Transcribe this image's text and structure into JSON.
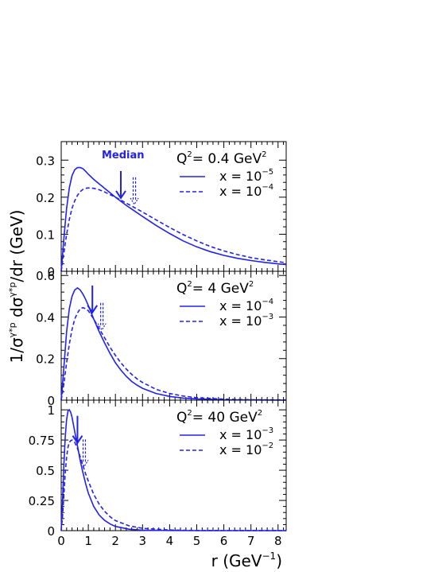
{
  "figure": {
    "ylabel_main": "1/σ",
    "ylabel_sup1": "γ*p",
    "ylabel_mid": " dσ",
    "ylabel_sup2": "γ*p",
    "ylabel_tail": "/dr (GeV)",
    "xlabel_main": "r (GeV",
    "xlabel_sup": "−1",
    "xlabel_close": ")",
    "median_label": "Median",
    "x_ticks": [
      "0",
      "1",
      "2",
      "3",
      "4",
      "5",
      "6",
      "7",
      "8"
    ]
  },
  "chart_data": [
    {
      "type": "line",
      "panel": "top",
      "q2_prefix": "Q",
      "q2_sup": "2",
      "q2_value": "= 0.4 GeV",
      "q2_unit_sup": "2",
      "xlim": [
        0,
        8.3
      ],
      "ylim": [
        0,
        0.35
      ],
      "y_ticks": [
        {
          "v": 0,
          "t": "0"
        },
        {
          "v": 0.1,
          "t": "0.1"
        },
        {
          "v": 0.2,
          "t": "0.2"
        },
        {
          "v": 0.3,
          "t": "0.3"
        }
      ],
      "series": [
        {
          "name": "x = 10",
          "exp": "−5",
          "style": "solid",
          "x": [
            0,
            0.1,
            0.2,
            0.3,
            0.4,
            0.5,
            0.6,
            0.7,
            0.8,
            0.9,
            1.0,
            1.2,
            1.4,
            1.6,
            1.8,
            2.0,
            2.2,
            2.4,
            2.6,
            2.8,
            3.0,
            3.5,
            4.0,
            4.5,
            5.0,
            5.5,
            6.0,
            6.5,
            7.0,
            7.5,
            8.0,
            8.3
          ],
          "y": [
            0,
            0.09,
            0.17,
            0.225,
            0.258,
            0.274,
            0.28,
            0.28,
            0.277,
            0.27,
            0.262,
            0.248,
            0.236,
            0.224,
            0.212,
            0.2,
            0.189,
            0.178,
            0.168,
            0.158,
            0.148,
            0.124,
            0.102,
            0.082,
            0.066,
            0.053,
            0.043,
            0.035,
            0.029,
            0.024,
            0.02,
            0.018
          ],
          "median": 2.2
        },
        {
          "name": "x = 10",
          "exp": "−4",
          "style": "dashed",
          "x": [
            0,
            0.1,
            0.2,
            0.3,
            0.4,
            0.5,
            0.6,
            0.7,
            0.8,
            0.9,
            1.0,
            1.2,
            1.4,
            1.6,
            1.8,
            2.0,
            2.2,
            2.4,
            2.6,
            2.8,
            3.0,
            3.5,
            4.0,
            4.5,
            5.0,
            5.5,
            6.0,
            6.5,
            7.0,
            7.5,
            8.0,
            8.3
          ],
          "y": [
            0,
            0.05,
            0.1,
            0.14,
            0.17,
            0.19,
            0.205,
            0.215,
            0.221,
            0.224,
            0.225,
            0.224,
            0.22,
            0.214,
            0.207,
            0.2,
            0.192,
            0.184,
            0.176,
            0.168,
            0.16,
            0.139,
            0.118,
            0.099,
            0.082,
            0.067,
            0.055,
            0.045,
            0.037,
            0.031,
            0.026,
            0.023
          ],
          "median": 2.7
        }
      ]
    },
    {
      "type": "line",
      "panel": "middle",
      "q2_prefix": "Q",
      "q2_sup": "2",
      "q2_value": "= 4 GeV",
      "q2_unit_sup": "2",
      "xlim": [
        0,
        8.3
      ],
      "ylim": [
        0,
        0.62
      ],
      "y_ticks": [
        {
          "v": 0,
          "t": "0"
        },
        {
          "v": 0.2,
          "t": "0.2"
        },
        {
          "v": 0.4,
          "t": "0.4"
        },
        {
          "v": 0.6,
          "t": "0.6"
        }
      ],
      "series": [
        {
          "name": "x = 10",
          "exp": "−4",
          "style": "solid",
          "x": [
            0,
            0.1,
            0.2,
            0.3,
            0.4,
            0.5,
            0.6,
            0.7,
            0.8,
            0.9,
            1.0,
            1.2,
            1.4,
            1.6,
            1.8,
            2.0,
            2.2,
            2.4,
            2.6,
            2.8,
            3.0,
            3.5,
            4.0,
            4.5,
            5.0,
            6.0,
            7.0,
            8.3
          ],
          "y": [
            0,
            0.16,
            0.33,
            0.44,
            0.5,
            0.53,
            0.54,
            0.53,
            0.51,
            0.485,
            0.455,
            0.39,
            0.33,
            0.275,
            0.225,
            0.18,
            0.145,
            0.115,
            0.09,
            0.072,
            0.057,
            0.032,
            0.018,
            0.01,
            0.006,
            0.002,
            0.001,
            0
          ],
          "median": 1.15
        },
        {
          "name": "x = 10",
          "exp": "−3",
          "style": "dashed",
          "x": [
            0,
            0.1,
            0.2,
            0.3,
            0.4,
            0.5,
            0.6,
            0.7,
            0.8,
            0.9,
            1.0,
            1.2,
            1.4,
            1.6,
            1.8,
            2.0,
            2.2,
            2.4,
            2.6,
            2.8,
            3.0,
            3.5,
            4.0,
            4.5,
            5.0,
            6.0,
            7.0,
            8.3
          ],
          "y": [
            0,
            0.08,
            0.18,
            0.27,
            0.34,
            0.39,
            0.42,
            0.44,
            0.445,
            0.44,
            0.43,
            0.39,
            0.345,
            0.3,
            0.255,
            0.215,
            0.18,
            0.15,
            0.124,
            0.102,
            0.085,
            0.052,
            0.032,
            0.02,
            0.012,
            0.005,
            0.002,
            0.001
          ],
          "median": 1.5
        }
      ]
    },
    {
      "type": "line",
      "panel": "bottom",
      "q2_prefix": "Q",
      "q2_sup": "2",
      "q2_value": "= 40 GeV",
      "q2_unit_sup": "2",
      "xlim": [
        0,
        8.3
      ],
      "ylim": [
        0,
        1.08
      ],
      "y_ticks": [
        {
          "v": 0,
          "t": "0"
        },
        {
          "v": 0.25,
          "t": "0.25"
        },
        {
          "v": 0.5,
          "t": "0.5"
        },
        {
          "v": 0.75,
          "t": "0.75"
        },
        {
          "v": 1,
          "t": "1"
        }
      ],
      "series": [
        {
          "name": "x = 10",
          "exp": "−3",
          "style": "solid",
          "x": [
            0,
            0.05,
            0.1,
            0.15,
            0.2,
            0.25,
            0.3,
            0.35,
            0.4,
            0.45,
            0.5,
            0.6,
            0.7,
            0.8,
            0.9,
            1.0,
            1.2,
            1.4,
            1.6,
            1.8,
            2.0,
            2.5,
            3.0,
            4.0,
            5.0,
            8.3
          ],
          "y": [
            0,
            0.25,
            0.55,
            0.78,
            0.92,
            0.99,
            1.0,
            0.98,
            0.94,
            0.88,
            0.82,
            0.7,
            0.58,
            0.48,
            0.39,
            0.31,
            0.2,
            0.13,
            0.085,
            0.055,
            0.035,
            0.012,
            0.004,
            0.001,
            0,
            0
          ],
          "median": 0.6
        },
        {
          "name": "x = 10",
          "exp": "−2",
          "style": "dashed",
          "x": [
            0,
            0.05,
            0.1,
            0.15,
            0.2,
            0.25,
            0.3,
            0.35,
            0.4,
            0.45,
            0.5,
            0.6,
            0.7,
            0.8,
            0.9,
            1.0,
            1.2,
            1.4,
            1.6,
            1.8,
            2.0,
            2.5,
            3.0,
            4.0,
            5.0,
            8.3
          ],
          "y": [
            0,
            0.12,
            0.3,
            0.48,
            0.61,
            0.69,
            0.73,
            0.745,
            0.75,
            0.745,
            0.73,
            0.68,
            0.61,
            0.54,
            0.47,
            0.41,
            0.3,
            0.22,
            0.16,
            0.115,
            0.083,
            0.04,
            0.019,
            0.005,
            0.001,
            0
          ],
          "median": 0.85
        }
      ]
    }
  ]
}
